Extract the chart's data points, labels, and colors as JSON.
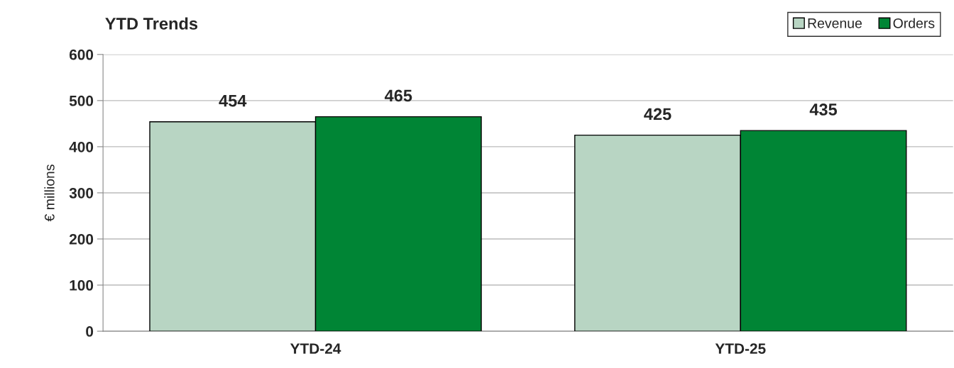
{
  "chart_data": {
    "type": "bar",
    "title": "YTD Trends",
    "ylabel": "€ millions",
    "categories": [
      "YTD-24",
      "YTD-25"
    ],
    "series": [
      {
        "name": "Revenue",
        "color": "#b8d5c3",
        "values": [
          454,
          425
        ]
      },
      {
        "name": "Orders",
        "color": "#008535",
        "values": [
          465,
          435
        ]
      }
    ],
    "ylim": [
      0,
      600
    ],
    "yticks": [
      0,
      100,
      200,
      300,
      400,
      500,
      600
    ],
    "grid": "y",
    "legend": "top right",
    "data_labels": true
  }
}
